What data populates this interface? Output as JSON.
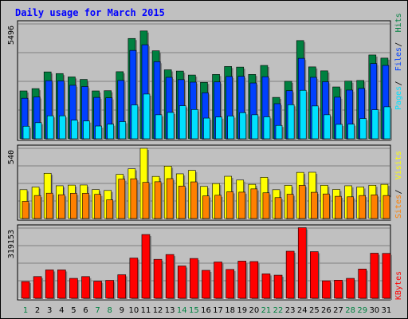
{
  "title": "Daily usage for March 2015",
  "chart_data": [
    {
      "type": "bar",
      "panel": "pages-files-hits",
      "categories": [
        "1",
        "2",
        "3",
        "4",
        "5",
        "6",
        "7",
        "8",
        "9",
        "10",
        "11",
        "12",
        "13",
        "14",
        "15",
        "16",
        "17",
        "18",
        "19",
        "20",
        "21",
        "22",
        "23",
        "24",
        "25",
        "26",
        "27",
        "28",
        "29",
        "30",
        "31"
      ],
      "weekend_days": [
        "1",
        "7",
        "8",
        "14",
        "15",
        "21",
        "22",
        "28",
        "29"
      ],
      "ymax_label": "5496",
      "ylim": [
        0,
        5496
      ],
      "series": [
        {
          "name": "Hits",
          "color": "#008040",
          "values": [
            2290,
            2400,
            3200,
            3120,
            2960,
            2840,
            2290,
            2300,
            3210,
            4800,
            5160,
            4210,
            3300,
            3240,
            3050,
            2700,
            3080,
            3460,
            3430,
            3080,
            3510,
            1980,
            2750,
            4700,
            3440,
            3250,
            2480,
            2760,
            2790,
            4010,
            3860
          ]
        },
        {
          "name": "Files",
          "color": "#0040ff",
          "values": [
            1940,
            2000,
            2780,
            2770,
            2560,
            2500,
            1980,
            1960,
            2790,
            4230,
            4500,
            3690,
            2940,
            2830,
            2710,
            2200,
            2720,
            2980,
            2990,
            2670,
            2970,
            1680,
            2300,
            3850,
            2940,
            2730,
            1990,
            2330,
            2410,
            3600,
            3510
          ]
        },
        {
          "name": "Pages",
          "color": "#00e0ff",
          "values": [
            600,
            770,
            1100,
            1100,
            890,
            850,
            610,
            700,
            820,
            1620,
            2140,
            1150,
            1260,
            1580,
            1400,
            990,
            1040,
            1090,
            1250,
            1150,
            1050,
            640,
            1630,
            2320,
            1570,
            1150,
            690,
            700,
            970,
            1390,
            1530
          ]
        }
      ],
      "legend": [
        "Pages",
        "Files",
        "Hits"
      ]
    },
    {
      "type": "bar",
      "panel": "sites-visits",
      "categories": [
        "1",
        "2",
        "3",
        "4",
        "5",
        "6",
        "7",
        "8",
        "9",
        "10",
        "11",
        "12",
        "13",
        "14",
        "15",
        "16",
        "17",
        "18",
        "19",
        "20",
        "21",
        "22",
        "23",
        "24",
        "25",
        "26",
        "27",
        "28",
        "29",
        "30",
        "31"
      ],
      "ymax_label": "540",
      "ylim": [
        0,
        540
      ],
      "series": [
        {
          "name": "Visits",
          "color": "#ffff00",
          "values": [
            222,
            242,
            348,
            252,
            257,
            258,
            223,
            216,
            340,
            383,
            540,
            324,
            403,
            344,
            370,
            247,
            269,
            325,
            296,
            263,
            317,
            222,
            255,
            355,
            356,
            256,
            224,
            252,
            243,
            256,
            263
          ]
        },
        {
          "name": "Sites",
          "color": "#ff8000",
          "values": [
            132,
            177,
            195,
            183,
            194,
            194,
            186,
            144,
            303,
            306,
            278,
            283,
            307,
            250,
            282,
            174,
            179,
            206,
            203,
            228,
            198,
            161,
            187,
            255,
            202,
            189,
            171,
            167,
            177,
            182,
            177
          ]
        }
      ],
      "legend": [
        "Sites",
        "Visits"
      ]
    },
    {
      "type": "bar",
      "panel": "kbytes",
      "categories": [
        "1",
        "2",
        "3",
        "4",
        "5",
        "6",
        "7",
        "8",
        "9",
        "10",
        "11",
        "12",
        "13",
        "14",
        "15",
        "16",
        "17",
        "18",
        "19",
        "20",
        "21",
        "22",
        "23",
        "24",
        "25",
        "26",
        "27",
        "28",
        "29",
        "30",
        "31"
      ],
      "ymax_label": "319153",
      "ylim": [
        0,
        319153
      ],
      "series": [
        {
          "name": "KBytes",
          "color": "#ff0000",
          "values": [
            75900,
            98700,
            129000,
            129000,
            90500,
            98600,
            77500,
            81500,
            107000,
            183000,
            290000,
            177000,
            199000,
            147000,
            181000,
            127000,
            165000,
            131000,
            169000,
            167000,
            111000,
            105000,
            214000,
            321000,
            212000,
            79500,
            82200,
            90500,
            133000,
            205000,
            204000
          ]
        }
      ],
      "legend": [
        "KBytes"
      ]
    }
  ]
}
